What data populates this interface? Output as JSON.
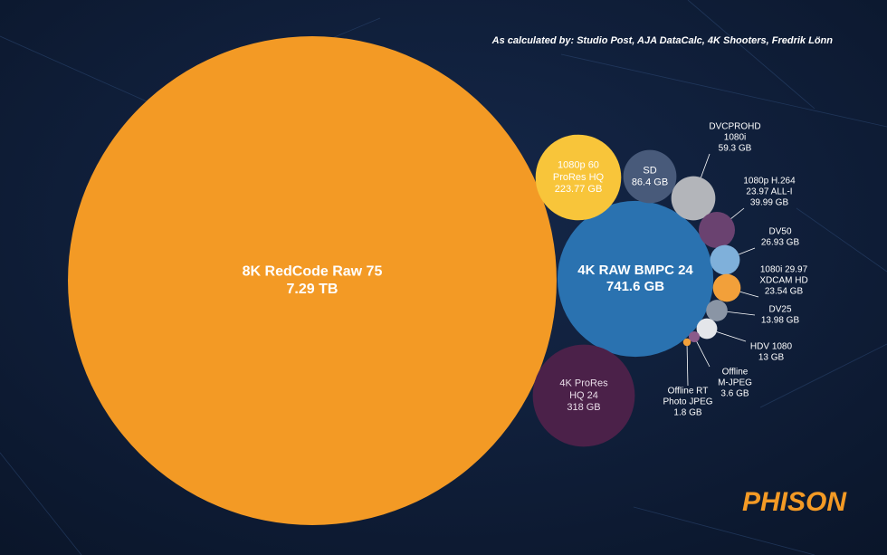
{
  "chart_data": {
    "type": "bubble",
    "source": "As calculated by: Studio Post, AJA DataCalc, 4K Shooters, Fredrik Lönn",
    "logo": "PHISON",
    "categories": [
      [
        "8K RedCode Raw 75"
      ],
      [
        "4K RAW BMPC 24"
      ],
      [
        "4K ProRes",
        "HQ 24"
      ],
      [
        "1080p 60",
        "ProRes HQ"
      ],
      [
        "SD"
      ],
      [
        "DVCPROHD",
        "1080i"
      ],
      [
        "1080p H.264",
        "23.97 ALL-I"
      ],
      [
        "DV50"
      ],
      [
        "1080i 29.97",
        "XDCAM HD"
      ],
      [
        "DV25"
      ],
      [
        "HDV 1080"
      ],
      [
        "Offline",
        "M-JPEG"
      ],
      [
        "Offline RT",
        "Photo JPEG"
      ]
    ],
    "values": [
      7290,
      741.6,
      318,
      223.77,
      86.4,
      59.3,
      39.99,
      26.93,
      23.54,
      13.98,
      13,
      3.6,
      1.8
    ],
    "value_labels": [
      "7.29 TB",
      "741.6 GB",
      "318 GB",
      "223.77 GB",
      "86.4 GB",
      "59.3 GB",
      "39.99 GB",
      "26.93 GB",
      "23.54 GB",
      "13.98 GB",
      "13 GB",
      "3.6 GB",
      "1.8 GB"
    ],
    "colors": [
      "#f39a25",
      "#2a72b0",
      "#4b2149",
      "#f8c53a",
      "#485a7a",
      "#b3b5ba",
      "#6a4270",
      "#7fb0da",
      "#f2a03a",
      "#8a95a5",
      "#e4e6ea",
      "#8a5a8a",
      "#f2a03a"
    ]
  }
}
